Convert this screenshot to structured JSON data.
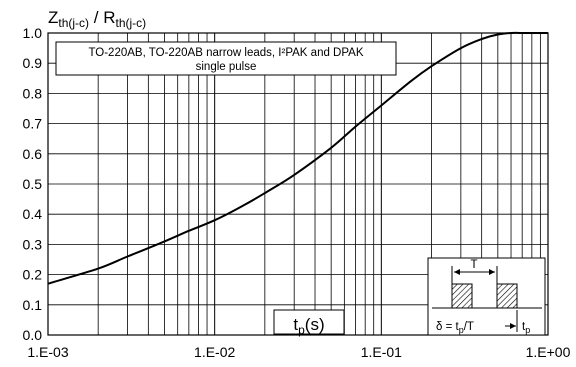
{
  "chart_data": {
    "type": "line",
    "ylabel": {
      "base1": "Z",
      "sub1": "th(j-c)",
      "sep": " / ",
      "base2": "R",
      "sub2": "th(j-c)"
    },
    "xlabel": {
      "base": "t",
      "sub": "p",
      "unit": "(s)"
    },
    "annotation": {
      "line1": "TO-220AB, TO-220AB narrow leads, I²PAK and DPAK",
      "line2": "single pulse"
    },
    "x_scale": "log",
    "xlim": [
      0.001,
      1.0
    ],
    "ylim": [
      0.0,
      1.0
    ],
    "grid": true,
    "x_tick_labels": [
      "1.E-03",
      "1.E-02",
      "1.E-01",
      "1.E+00"
    ],
    "y_tick_labels": [
      "0.0",
      "0.1",
      "0.2",
      "0.3",
      "0.4",
      "0.5",
      "0.6",
      "0.7",
      "0.8",
      "0.9",
      "1.0"
    ],
    "series": [
      {
        "x": [
          0.001,
          0.002,
          0.003,
          0.005,
          0.007,
          0.01,
          0.015,
          0.02,
          0.03,
          0.05,
          0.07,
          0.1,
          0.15,
          0.2,
          0.3,
          0.4,
          0.5,
          0.6,
          0.7,
          1.0
        ],
        "y": [
          0.17,
          0.22,
          0.26,
          0.31,
          0.345,
          0.38,
          0.43,
          0.47,
          0.53,
          0.62,
          0.69,
          0.76,
          0.84,
          0.89,
          0.95,
          0.98,
          0.995,
          1.0,
          1.0,
          1.0
        ]
      }
    ],
    "inset": {
      "period_label": "T",
      "duty_label": {
        "pre": "δ = t",
        "sub": "p",
        "post": "/T"
      },
      "pulse_label": {
        "base": "t",
        "sub": "p"
      }
    }
  }
}
